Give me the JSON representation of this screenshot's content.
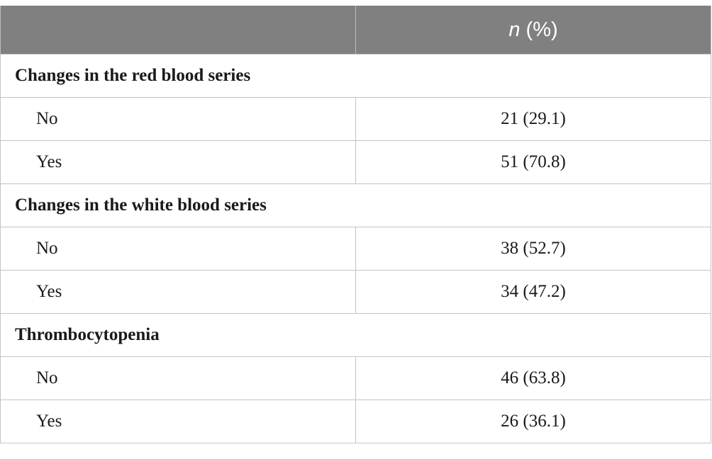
{
  "header": {
    "col1": "",
    "col2_italic": "n",
    "col2_rest": " (%)"
  },
  "sections": [
    {
      "title": "Changes in the red blood series",
      "rows": [
        {
          "label": "No",
          "value": "21 (29.1)"
        },
        {
          "label": "Yes",
          "value": "51 (70.8)"
        }
      ]
    },
    {
      "title": "Changes in the white blood series",
      "rows": [
        {
          "label": "No",
          "value": "38 (52.7)"
        },
        {
          "label": "Yes",
          "value": "34 (47.2)"
        }
      ]
    },
    {
      "title": "Thrombocytopenia",
      "rows": [
        {
          "label": "No",
          "value": "46 (63.8)"
        },
        {
          "label": "Yes",
          "value": "26 (36.1)"
        }
      ]
    }
  ]
}
